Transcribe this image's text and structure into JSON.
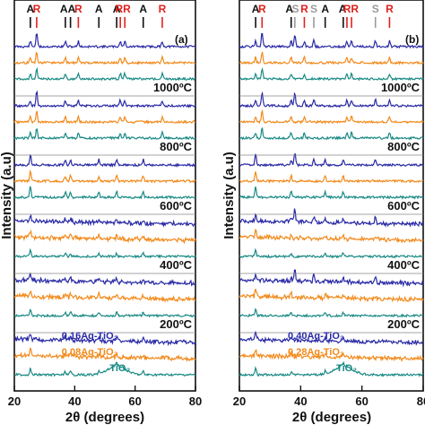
{
  "colors": {
    "blue": "#2a2aa6",
    "orange": "#f28a1c",
    "teal": "#1a8a85",
    "anatase_marker": "#111111",
    "rutile_marker": "#e0211d",
    "s_marker": "#9a9a9a",
    "separator": "#888888"
  },
  "chart_data": [
    {
      "type": "line",
      "panel_label": "(a)",
      "xlabel": "2θ (degrees)",
      "ylabel": "Intensity (a.u)",
      "xlim": [
        20,
        80
      ],
      "x_ticks": [
        "20",
        "40",
        "60",
        "80"
      ],
      "phase_markers": [
        {
          "label": "A",
          "x": 25.3,
          "color_key": "anatase_marker"
        },
        {
          "label": "R",
          "x": 27.4,
          "color_key": "rutile_marker"
        },
        {
          "label": "A",
          "x": 36.9,
          "color_key": "anatase_marker"
        },
        {
          "label": "A",
          "x": 38.6,
          "color_key": "anatase_marker"
        },
        {
          "label": "R",
          "x": 41.2,
          "color_key": "rutile_marker"
        },
        {
          "label": "A",
          "x": 48.0,
          "color_key": "anatase_marker"
        },
        {
          "label": "A",
          "x": 53.9,
          "color_key": "anatase_marker"
        },
        {
          "label": "R",
          "x": 55.1,
          "color_key": "rutile_marker"
        },
        {
          "label": "R",
          "x": 56.6,
          "color_key": "rutile_marker"
        },
        {
          "label": "A",
          "x": 62.7,
          "color_key": "anatase_marker"
        },
        {
          "label": "R",
          "x": 69.0,
          "color_key": "rutile_marker"
        }
      ],
      "phase_letters": [
        {
          "text": "A",
          "color_key": "anatase_marker",
          "x": 25.3
        },
        {
          "text": "R",
          "color_key": "rutile_marker",
          "x": 27.4
        },
        {
          "text": "AA",
          "color_key": "anatase_marker",
          "x": 37.7
        },
        {
          "text": "R",
          "color_key": "rutile_marker",
          "x": 41.2
        },
        {
          "text": "A",
          "color_key": "anatase_marker",
          "x": 48.0
        },
        {
          "text": "A",
          "color_key": "anatase_marker",
          "x": 53.9
        },
        {
          "text": "RR",
          "color_key": "rutile_marker",
          "x": 56.0
        },
        {
          "text": "A",
          "color_key": "anatase_marker",
          "x": 62.7
        },
        {
          "text": "R",
          "color_key": "rutile_marker",
          "x": 69.0
        }
      ],
      "groups": [
        {
          "temperature": "1000ºC",
          "traces": [
            "blue",
            "orange",
            "teal"
          ]
        },
        {
          "temperature": "800ºC",
          "traces": [
            "blue",
            "orange",
            "teal"
          ]
        },
        {
          "temperature": "600ºC",
          "traces": [
            "blue",
            "orange",
            "teal"
          ]
        },
        {
          "temperature": "400ºC",
          "traces": [
            "blue",
            "orange",
            "teal"
          ]
        },
        {
          "temperature": "200ºC",
          "traces": [
            "blue",
            "orange",
            "teal"
          ]
        }
      ],
      "series": [
        {
          "name": "0.16Ag-TiO₂",
          "color_key": "blue"
        },
        {
          "name": "0.08Ag-TiO₂",
          "color_key": "orange"
        },
        {
          "name": "TiO₂",
          "color_key": "teal"
        }
      ]
    },
    {
      "type": "line",
      "panel_label": "(b)",
      "xlabel": "2θ (degrees)",
      "ylabel": "Intensity (a.u)",
      "xlim": [
        20,
        80
      ],
      "x_ticks": [
        "20",
        "40",
        "60",
        "80"
      ],
      "phase_markers": [
        {
          "label": "A",
          "x": 25.3,
          "color_key": "anatase_marker"
        },
        {
          "label": "R",
          "x": 27.4,
          "color_key": "rutile_marker"
        },
        {
          "label": "A",
          "x": 36.9,
          "color_key": "anatase_marker"
        },
        {
          "label": "S",
          "x": 38.1,
          "color_key": "s_marker"
        },
        {
          "label": "R",
          "x": 41.2,
          "color_key": "rutile_marker"
        },
        {
          "label": "S",
          "x": 44.3,
          "color_key": "s_marker"
        },
        {
          "label": "A",
          "x": 48.0,
          "color_key": "anatase_marker"
        },
        {
          "label": "A",
          "x": 53.9,
          "color_key": "anatase_marker"
        },
        {
          "label": "R",
          "x": 55.1,
          "color_key": "rutile_marker"
        },
        {
          "label": "R",
          "x": 56.6,
          "color_key": "rutile_marker"
        },
        {
          "label": "S",
          "x": 64.4,
          "color_key": "s_marker"
        },
        {
          "label": "R",
          "x": 69.0,
          "color_key": "rutile_marker"
        }
      ],
      "phase_letters": [
        {
          "text": "A",
          "color_key": "anatase_marker",
          "x": 25.3
        },
        {
          "text": "R",
          "color_key": "rutile_marker",
          "x": 27.4
        },
        {
          "text": "A",
          "color_key": "anatase_marker",
          "x": 36.3
        },
        {
          "text": "S",
          "color_key": "s_marker",
          "x": 38.3
        },
        {
          "text": "R",
          "color_key": "rutile_marker",
          "x": 41.2
        },
        {
          "text": "S",
          "color_key": "s_marker",
          "x": 44.3
        },
        {
          "text": "A",
          "color_key": "anatase_marker",
          "x": 48.0
        },
        {
          "text": "A",
          "color_key": "anatase_marker",
          "x": 53.7
        },
        {
          "text": "RR",
          "color_key": "rutile_marker",
          "x": 56.4
        },
        {
          "text": "S",
          "color_key": "s_marker",
          "x": 64.4
        },
        {
          "text": "R",
          "color_key": "rutile_marker",
          "x": 69.0
        }
      ],
      "groups": [
        {
          "temperature": "1000ºC",
          "traces": [
            "blue",
            "orange",
            "teal"
          ]
        },
        {
          "temperature": "800ºC",
          "traces": [
            "blue",
            "orange",
            "teal"
          ]
        },
        {
          "temperature": "600ºC",
          "traces": [
            "blue",
            "orange",
            "teal"
          ]
        },
        {
          "temperature": "400ºC",
          "traces": [
            "blue",
            "orange",
            "teal"
          ]
        },
        {
          "temperature": "200ºC",
          "traces": [
            "blue",
            "orange",
            "teal"
          ]
        }
      ],
      "series": [
        {
          "name": "0.40Ag-TiO₂",
          "color_key": "blue"
        },
        {
          "name": "0.28Ag-TiO₂",
          "color_key": "orange"
        },
        {
          "name": "TiO₂",
          "color_key": "teal"
        }
      ]
    }
  ]
}
